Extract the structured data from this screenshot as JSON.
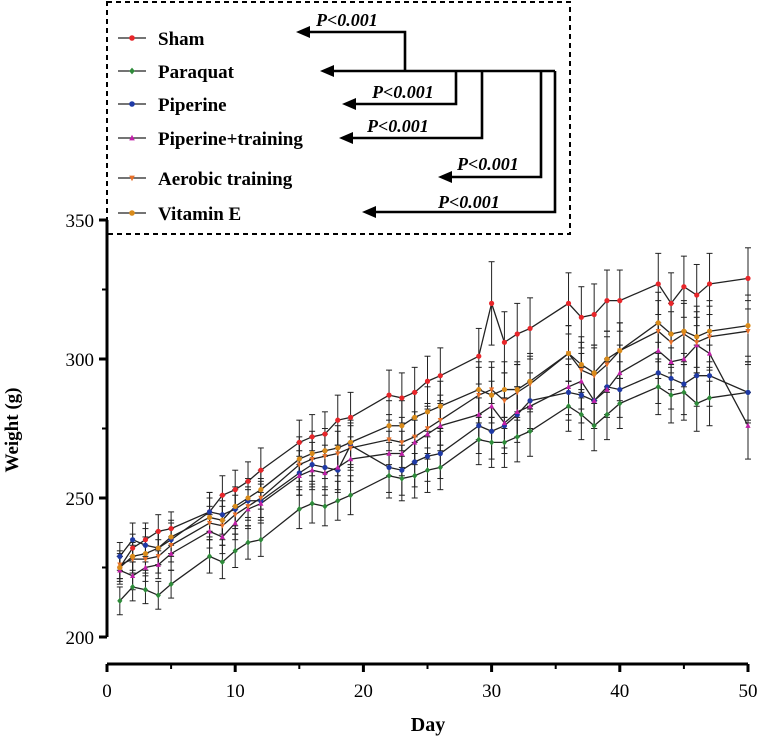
{
  "chart_data": {
    "type": "line",
    "title": "",
    "xlabel": "Day",
    "ylabel": "Weight (g)",
    "xlim": [
      0,
      50
    ],
    "ylim": [
      200,
      350
    ],
    "x_ticks": [
      "0",
      "10",
      "20",
      "30",
      "40",
      "50"
    ],
    "y_ticks": [
      "200",
      "250",
      "300",
      "350"
    ],
    "grid": false,
    "legend_position": "top-left",
    "x": [
      1,
      2,
      3,
      4,
      5,
      8,
      9,
      10,
      11,
      12,
      15,
      16,
      17,
      18,
      19,
      22,
      23,
      24,
      25,
      26,
      29,
      30,
      31,
      32,
      33,
      36,
      37,
      38,
      39,
      40,
      43,
      44,
      45,
      46,
      47,
      50
    ],
    "series": [
      {
        "name": "Sham",
        "color": "#e8262a",
        "marker": "circle",
        "values": [
          225,
          232,
          235,
          238,
          239,
          245,
          251,
          253,
          256,
          260,
          270,
          272,
          273,
          278,
          279,
          287,
          286,
          288,
          292,
          294,
          301,
          320,
          306,
          309,
          311,
          320,
          315,
          316,
          321,
          321,
          327,
          320,
          326,
          323,
          327,
          329
        ],
        "errors": [
          4,
          5,
          6,
          6,
          6,
          7,
          7,
          7,
          7,
          8,
          8,
          8,
          8,
          9,
          9,
          9,
          9,
          9,
          9,
          10,
          10,
          15,
          11,
          11,
          11,
          11,
          11,
          11,
          11,
          11,
          11,
          11,
          11,
          11,
          11,
          11
        ]
      },
      {
        "name": "Paraquat",
        "color": "#2e8b3a",
        "marker": "diamond",
        "values": [
          213,
          218,
          217,
          215,
          219,
          229,
          227,
          231,
          234,
          235,
          246,
          248,
          247,
          249,
          251,
          258,
          257,
          258,
          260,
          261,
          271,
          270,
          270,
          272,
          274,
          283,
          280,
          276,
          280,
          284,
          290,
          287,
          288,
          284,
          286,
          288
        ],
        "errors": [
          5,
          5,
          5,
          5,
          5,
          6,
          6,
          6,
          6,
          6,
          7,
          7,
          7,
          7,
          7,
          8,
          8,
          8,
          8,
          8,
          9,
          9,
          9,
          9,
          9,
          9,
          9,
          9,
          9,
          9,
          10,
          10,
          10,
          10,
          10,
          10
        ]
      },
      {
        "name": "Piperine",
        "color": "#1f3aa6",
        "marker": "circle",
        "values": [
          229,
          235,
          233,
          232,
          235,
          245,
          244,
          246,
          249,
          249,
          259,
          262,
          261,
          260,
          269,
          261,
          260,
          263,
          265,
          266,
          276,
          274,
          276,
          280,
          285,
          288,
          287,
          285,
          290,
          289,
          295,
          293,
          291,
          294,
          294,
          288
        ],
        "errors": [
          5,
          6,
          6,
          6,
          6,
          7,
          7,
          7,
          7,
          7,
          8,
          8,
          8,
          8,
          8,
          9,
          9,
          9,
          9,
          9,
          10,
          10,
          10,
          10,
          10,
          10,
          10,
          10,
          10,
          10,
          11,
          11,
          11,
          11,
          11,
          11
        ]
      },
      {
        "name": "Piperine+training",
        "color": "#c11fa8",
        "marker": "triangle-up",
        "values": [
          224,
          222,
          225,
          226,
          230,
          238,
          236,
          241,
          246,
          248,
          258,
          260,
          259,
          261,
          264,
          266,
          266,
          270,
          273,
          276,
          280,
          283,
          277,
          281,
          283,
          290,
          292,
          285,
          289,
          295,
          303,
          299,
          300,
          305,
          302,
          276
        ],
        "errors": [
          5,
          5,
          5,
          5,
          6,
          6,
          6,
          6,
          7,
          7,
          7,
          7,
          8,
          8,
          8,
          8,
          8,
          8,
          9,
          9,
          9,
          9,
          9,
          9,
          9,
          10,
          10,
          10,
          10,
          10,
          10,
          10,
          10,
          10,
          10,
          12
        ]
      },
      {
        "name": "Aerobic training",
        "color": "#e8702a",
        "marker": "triangle-down",
        "values": [
          226,
          228,
          228,
          229,
          233,
          241,
          240,
          244,
          247,
          250,
          262,
          264,
          265,
          266,
          268,
          271,
          270,
          272,
          275,
          278,
          287,
          289,
          285,
          288,
          291,
          302,
          296,
          294,
          298,
          303,
          310,
          306,
          309,
          306,
          308,
          310
        ],
        "errors": [
          5,
          5,
          5,
          6,
          6,
          6,
          7,
          7,
          7,
          7,
          8,
          8,
          8,
          8,
          8,
          9,
          9,
          9,
          9,
          9,
          10,
          10,
          10,
          10,
          10,
          10,
          10,
          10,
          10,
          10,
          11,
          11,
          11,
          11,
          11,
          11
        ]
      },
      {
        "name": "Vitamin E",
        "color": "#d98b1a",
        "marker": "circle",
        "values": [
          225,
          229,
          230,
          232,
          236,
          243,
          242,
          247,
          250,
          253,
          264,
          266,
          267,
          268,
          270,
          276,
          276,
          279,
          281,
          283,
          289,
          287,
          289,
          289,
          292,
          302,
          298,
          295,
          300,
          303,
          313,
          309,
          310,
          308,
          310,
          312
        ],
        "errors": [
          5,
          5,
          6,
          6,
          6,
          7,
          7,
          7,
          7,
          7,
          8,
          8,
          8,
          8,
          8,
          9,
          9,
          9,
          9,
          9,
          10,
          10,
          10,
          10,
          10,
          10,
          10,
          10,
          10,
          10,
          11,
          11,
          11,
          11,
          11,
          11
        ]
      }
    ],
    "annotations": [
      {
        "text": "P<0.001",
        "from": "Paraquat",
        "to": "Sham"
      },
      {
        "text": "P<0.001",
        "from": "Paraquat",
        "to": "Piperine"
      },
      {
        "text": "P<0.001",
        "from": "Paraquat",
        "to": "Piperine+training"
      },
      {
        "text": "P<0.001",
        "from": "Paraquat",
        "to": "Aerobic training"
      },
      {
        "text": "P<0.001",
        "from": "Paraquat",
        "to": "Vitamin E"
      }
    ]
  }
}
